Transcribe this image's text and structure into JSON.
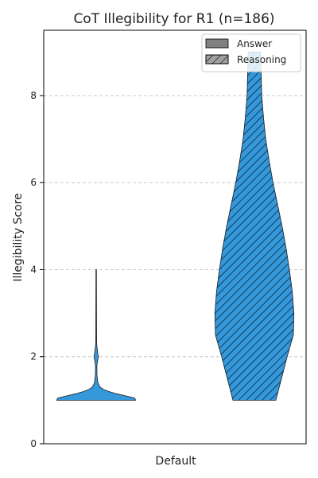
{
  "chart_data": {
    "type": "violin",
    "title": "CoT Illegibility for R1 (n=186)",
    "xlabel": "",
    "ylabel": "Illegibility Score",
    "categories": [
      "Default"
    ],
    "ylim": [
      0,
      9.5
    ],
    "yticks": [
      0,
      2,
      4,
      6,
      8
    ],
    "grid": true,
    "legend": {
      "placement": "top-right",
      "entries": [
        {
          "name": "Answer",
          "hatch": false,
          "color": "#808080"
        },
        {
          "name": "Reasoning",
          "hatch": true,
          "color": "#a0a0a0"
        }
      ]
    },
    "fill_color": "#3498db",
    "series": [
      {
        "name": "Answer",
        "group": "Default",
        "y_min": 1.0,
        "y_max": 4.0,
        "profile": [
          [
            1.0,
            0.35
          ],
          [
            1.05,
            0.34
          ],
          [
            1.1,
            0.26
          ],
          [
            1.15,
            0.18
          ],
          [
            1.2,
            0.11
          ],
          [
            1.25,
            0.065
          ],
          [
            1.3,
            0.035
          ],
          [
            1.4,
            0.015
          ],
          [
            1.6,
            0.006
          ],
          [
            1.8,
            0.006
          ],
          [
            1.9,
            0.012
          ],
          [
            2.0,
            0.02
          ],
          [
            2.1,
            0.012
          ],
          [
            2.3,
            0.004
          ],
          [
            3.0,
            0.003
          ],
          [
            4.0,
            0.002
          ]
        ]
      },
      {
        "name": "Reasoning",
        "group": "Default",
        "y_min": 1.0,
        "y_max": 9.0,
        "profile": [
          [
            1.0,
            0.19
          ],
          [
            1.3,
            0.22
          ],
          [
            1.6,
            0.25
          ],
          [
            2.0,
            0.29
          ],
          [
            2.5,
            0.345
          ],
          [
            3.0,
            0.35
          ],
          [
            3.5,
            0.335
          ],
          [
            4.0,
            0.31
          ],
          [
            4.5,
            0.28
          ],
          [
            5.0,
            0.245
          ],
          [
            5.5,
            0.205
          ],
          [
            6.0,
            0.165
          ],
          [
            6.5,
            0.13
          ],
          [
            7.0,
            0.1
          ],
          [
            7.5,
            0.08
          ],
          [
            8.0,
            0.065
          ],
          [
            8.5,
            0.06
          ],
          [
            9.0,
            0.055
          ]
        ]
      }
    ]
  }
}
